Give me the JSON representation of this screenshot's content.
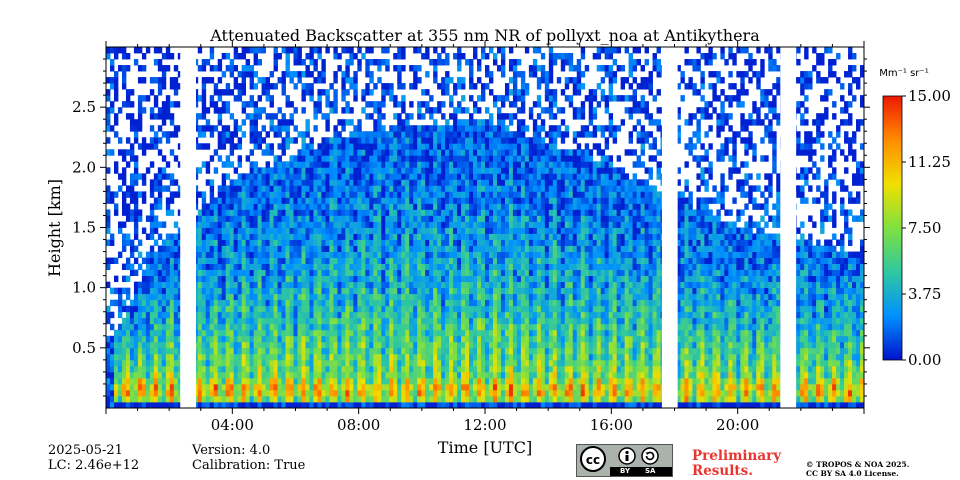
{
  "chart_data": {
    "type": "heatmap",
    "title": "Attenuated Backscatter at 355 nm NR of pollyxt_noa at Antikythera",
    "xlabel": "Time [UTC]",
    "ylabel": "Height [km]",
    "xlim_hours": [
      0,
      24
    ],
    "ylim_km": [
      0,
      3.0
    ],
    "x_ticks": [
      {
        "hour": 4,
        "label": "04:00"
      },
      {
        "hour": 8,
        "label": "08:00"
      },
      {
        "hour": 12,
        "label": "12:00"
      },
      {
        "hour": 16,
        "label": "16:00"
      },
      {
        "hour": 20,
        "label": "20:00"
      }
    ],
    "y_ticks": [
      {
        "value": 0.5,
        "label": "0.5"
      },
      {
        "value": 1.0,
        "label": "1.0"
      },
      {
        "value": 1.5,
        "label": "1.5"
      },
      {
        "value": 2.0,
        "label": "2.0"
      },
      {
        "value": 2.5,
        "label": "2.5"
      }
    ],
    "colorbar": {
      "unit_label": "Mm⁻¹ sr⁻¹",
      "min": 0.0,
      "max": 15.0,
      "ticks": [
        {
          "value": 0.0,
          "label": "0.00"
        },
        {
          "value": 3.75,
          "label": "3.75"
        },
        {
          "value": 7.5,
          "label": "7.50"
        },
        {
          "value": 11.25,
          "label": "11.25"
        },
        {
          "value": 15.0,
          "label": "15.00"
        }
      ],
      "colors": [
        "#0012cc",
        "#0090ff",
        "#2fc8a0",
        "#80e040",
        "#f0e000",
        "#ff8c00",
        "#ee1800"
      ]
    },
    "data_gaps_hours": [
      [
        2.35,
        2.85
      ],
      [
        17.6,
        18.1
      ],
      [
        21.35,
        21.85
      ]
    ],
    "profile_summary": {
      "near_surface_peak_km": 0.15,
      "mixing_layer_top_km": [
        {
          "hour": 0.3,
          "value": 0.6
        },
        {
          "hour": 1.5,
          "value": 1.3
        },
        {
          "hour": 4,
          "value": 1.9
        },
        {
          "hour": 8,
          "value": 2.3
        },
        {
          "hour": 12,
          "value": 2.4
        },
        {
          "hour": 16,
          "value": 2.0
        },
        {
          "hour": 20,
          "value": 1.5
        },
        {
          "hour": 23.5,
          "value": 1.3
        }
      ]
    }
  },
  "footer": {
    "date": "2025-05-21",
    "lc": "LC: 2.46e+12",
    "version": "Version: 4.0",
    "calibration": "Calibration: True",
    "cc_by": "BY",
    "cc_sa": "SA",
    "preliminary_line1": "Preliminary",
    "preliminary_line2": "Results.",
    "copyright_line1": "© TROPOS & NOA 2025.",
    "copyright_line2": "CC BY SA 4.0 License."
  }
}
